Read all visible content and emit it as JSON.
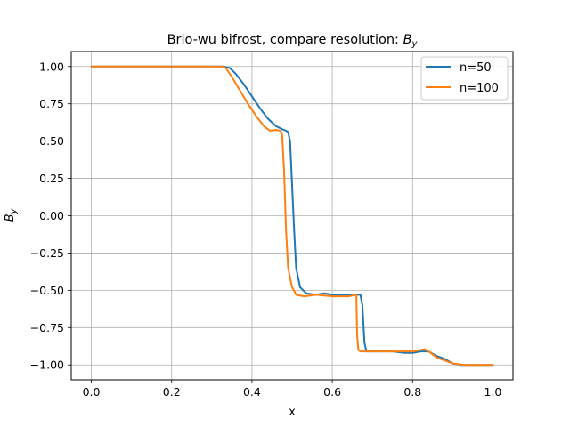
{
  "chart_data": {
    "type": "line",
    "title": "Brio-wu bifrost, compare resolution: ",
    "title_math_main": "B",
    "title_math_sub": "y",
    "xlabel": "x",
    "ylabel_main": "B",
    "ylabel_sub": "y",
    "xlim": [
      -0.05,
      1.05
    ],
    "ylim": [
      -1.1,
      1.1
    ],
    "xticks": [
      0.0,
      0.2,
      0.4,
      0.6,
      0.8,
      1.0
    ],
    "xtick_labels": [
      "0.0",
      "0.2",
      "0.4",
      "0.6",
      "0.8",
      "1.0"
    ],
    "yticks": [
      1.0,
      0.75,
      0.5,
      0.25,
      0.0,
      -0.25,
      -0.5,
      -0.75,
      -1.0
    ],
    "ytick_labels": [
      "1.00",
      "0.75",
      "0.50",
      "0.25",
      "0.00",
      "−0.25",
      "−0.50",
      "−0.75",
      "−1.00"
    ],
    "grid": true,
    "legend_position": "top-right",
    "series": [
      {
        "name": "n=50",
        "color": "#1f77b4",
        "points": [
          [
            0.0,
            1.0
          ],
          [
            0.33,
            1.0
          ],
          [
            0.345,
            0.99
          ],
          [
            0.36,
            0.95
          ],
          [
            0.38,
            0.88
          ],
          [
            0.4,
            0.8
          ],
          [
            0.42,
            0.72
          ],
          [
            0.44,
            0.65
          ],
          [
            0.46,
            0.6
          ],
          [
            0.475,
            0.58
          ],
          [
            0.485,
            0.57
          ],
          [
            0.49,
            0.56
          ],
          [
            0.495,
            0.5
          ],
          [
            0.5,
            0.2
          ],
          [
            0.505,
            -0.1
          ],
          [
            0.51,
            -0.35
          ],
          [
            0.52,
            -0.48
          ],
          [
            0.535,
            -0.52
          ],
          [
            0.56,
            -0.53
          ],
          [
            0.58,
            -0.52
          ],
          [
            0.6,
            -0.53
          ],
          [
            0.64,
            -0.53
          ],
          [
            0.67,
            -0.53
          ],
          [
            0.675,
            -0.6
          ],
          [
            0.68,
            -0.85
          ],
          [
            0.685,
            -0.91
          ],
          [
            0.7,
            -0.91
          ],
          [
            0.75,
            -0.91
          ],
          [
            0.78,
            -0.92
          ],
          [
            0.8,
            -0.92
          ],
          [
            0.82,
            -0.91
          ],
          [
            0.84,
            -0.91
          ],
          [
            0.86,
            -0.94
          ],
          [
            0.88,
            -0.96
          ],
          [
            0.9,
            -0.99
          ],
          [
            0.92,
            -1.0
          ],
          [
            1.0,
            -1.0
          ]
        ]
      },
      {
        "name": "n=100",
        "color": "#ff7f0e",
        "points": [
          [
            0.0,
            1.0
          ],
          [
            0.325,
            1.0
          ],
          [
            0.335,
            0.99
          ],
          [
            0.35,
            0.93
          ],
          [
            0.37,
            0.84
          ],
          [
            0.39,
            0.75
          ],
          [
            0.41,
            0.67
          ],
          [
            0.43,
            0.6
          ],
          [
            0.445,
            0.57
          ],
          [
            0.46,
            0.575
          ],
          [
            0.47,
            0.57
          ],
          [
            0.475,
            0.55
          ],
          [
            0.48,
            0.3
          ],
          [
            0.485,
            -0.1
          ],
          [
            0.49,
            -0.35
          ],
          [
            0.5,
            -0.48
          ],
          [
            0.51,
            -0.53
          ],
          [
            0.53,
            -0.54
          ],
          [
            0.56,
            -0.53
          ],
          [
            0.6,
            -0.54
          ],
          [
            0.64,
            -0.54
          ],
          [
            0.66,
            -0.53
          ],
          [
            0.662,
            -0.8
          ],
          [
            0.665,
            -0.9
          ],
          [
            0.67,
            -0.91
          ],
          [
            0.72,
            -0.91
          ],
          [
            0.76,
            -0.91
          ],
          [
            0.8,
            -0.91
          ],
          [
            0.82,
            -0.9
          ],
          [
            0.83,
            -0.895
          ],
          [
            0.84,
            -0.91
          ],
          [
            0.86,
            -0.95
          ],
          [
            0.88,
            -0.97
          ],
          [
            0.9,
            -0.99
          ],
          [
            0.93,
            -1.0
          ],
          [
            1.0,
            -1.0
          ]
        ]
      }
    ]
  }
}
